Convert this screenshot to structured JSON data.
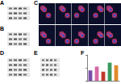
{
  "panels": [
    {
      "label": "A"
    },
    {
      "label": "B"
    },
    {
      "label": "C"
    },
    {
      "label": "D"
    },
    {
      "label": "E"
    },
    {
      "label": "F"
    }
  ],
  "chart_data": {
    "type": "bar",
    "categories": [
      null,
      null,
      null,
      null,
      null
    ],
    "values": [
      40,
      55,
      35,
      70,
      60
    ],
    "colors": [
      "#7b4fa8",
      "#d66aa5",
      "#c0392b",
      "#3a9a5b",
      "#e08a2e"
    ],
    "ylim": [
      0,
      100
    ],
    "yticks": [
      0,
      50,
      100
    ],
    "grid": false,
    "tick_labels": false
  }
}
